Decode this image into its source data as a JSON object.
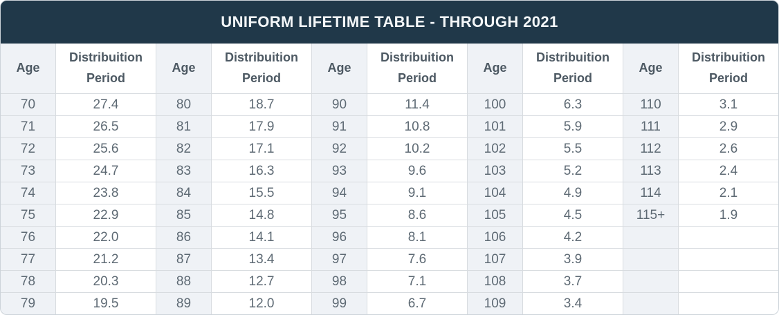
{
  "title": "UNIFORM LIFETIME TABLE - THROUGH 2021",
  "header": {
    "age_label": "Age",
    "period_label": "Distribuition Period"
  },
  "colors": {
    "title_bar_bg": "#203849",
    "title_text": "#f4f7f9",
    "age_column_bg": "#eff2f6",
    "period_column_bg": "#ffffff",
    "grid_border": "#d8dce0",
    "header_text": "#4d5963",
    "cell_text": "#5e6a74"
  },
  "chart_data": {
    "type": "table",
    "title": "UNIFORM LIFETIME TABLE - THROUGH 2021",
    "columns_repeated": [
      "Age",
      "Distribuition Period"
    ],
    "column_pair_count": 5,
    "rows_per_column": 10,
    "column_pairs": [
      {
        "ages": [
          "70",
          "71",
          "72",
          "73",
          "74",
          "75",
          "76",
          "77",
          "78",
          "79"
        ],
        "periods": [
          "27.4",
          "26.5",
          "25.6",
          "24.7",
          "23.8",
          "22.9",
          "22.0",
          "21.2",
          "20.3",
          "19.5"
        ]
      },
      {
        "ages": [
          "80",
          "81",
          "82",
          "83",
          "84",
          "85",
          "86",
          "87",
          "88",
          "89"
        ],
        "periods": [
          "18.7",
          "17.9",
          "17.1",
          "16.3",
          "15.5",
          "14.8",
          "14.1",
          "13.4",
          "12.7",
          "12.0"
        ]
      },
      {
        "ages": [
          "90",
          "91",
          "92",
          "93",
          "94",
          "95",
          "96",
          "97",
          "98",
          "99"
        ],
        "periods": [
          "11.4",
          "10.8",
          "10.2",
          "9.6",
          "9.1",
          "8.6",
          "8.1",
          "7.6",
          "7.1",
          "6.7"
        ]
      },
      {
        "ages": [
          "100",
          "101",
          "102",
          "103",
          "104",
          "105",
          "106",
          "107",
          "108",
          "109"
        ],
        "periods": [
          "6.3",
          "5.9",
          "5.5",
          "5.2",
          "4.9",
          "4.5",
          "4.2",
          "3.9",
          "3.7",
          "3.4"
        ]
      },
      {
        "ages": [
          "110",
          "111",
          "112",
          "113",
          "114",
          "115+"
        ],
        "periods": [
          "3.1",
          "2.9",
          "2.6",
          "2.4",
          "2.1",
          "1.9"
        ]
      }
    ]
  }
}
